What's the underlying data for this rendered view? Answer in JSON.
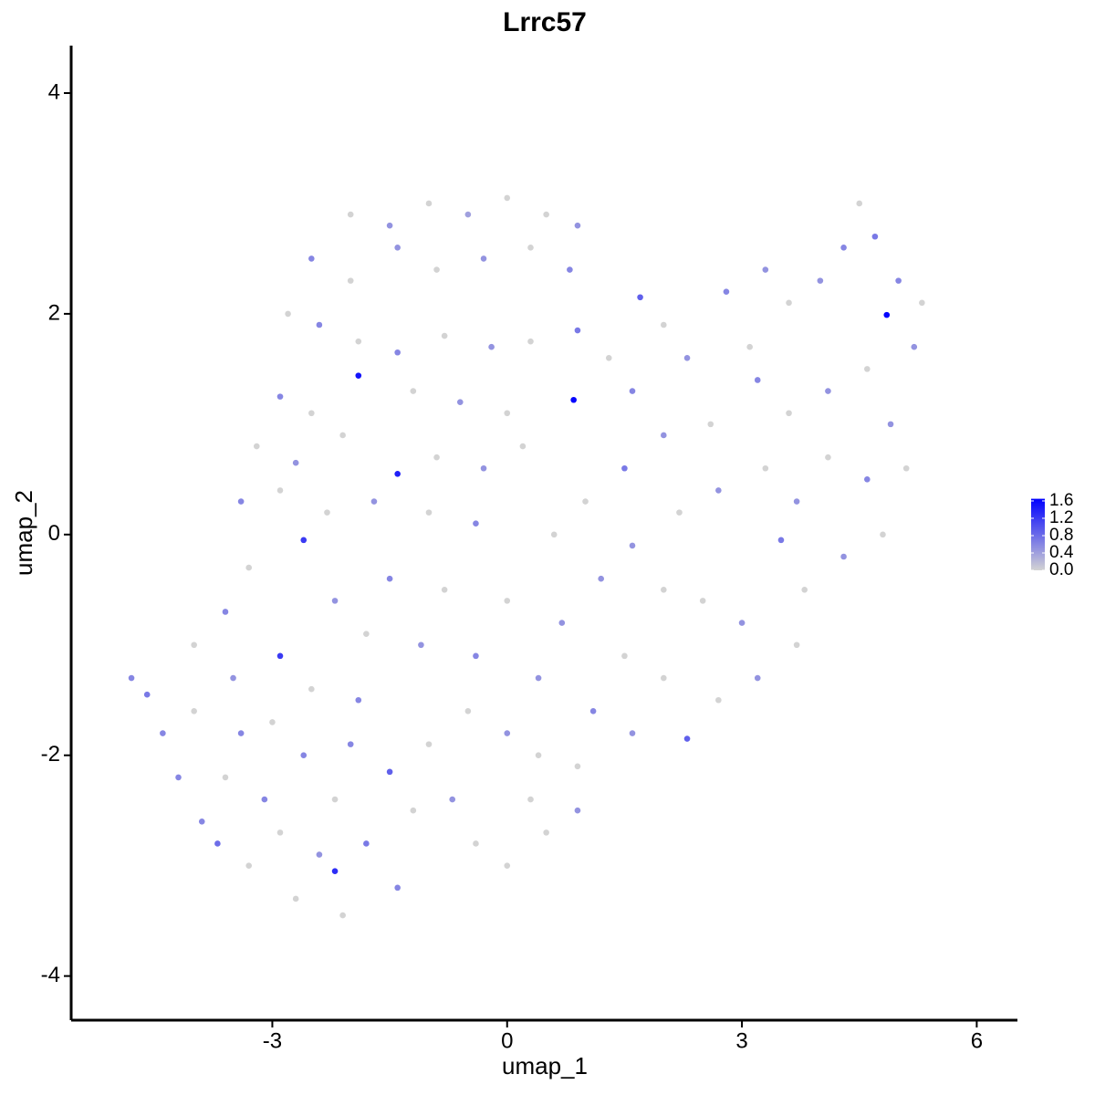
{
  "chart_data": {
    "type": "scatter",
    "title": "Lrrc57",
    "x_label": "umap_1",
    "y_label": "umap_2",
    "xlim": [
      -5.57,
      6.52
    ],
    "ylim": [
      -4.4,
      4.43
    ],
    "xticks": [
      -3,
      0,
      3,
      6
    ],
    "yticks": [
      -4,
      -2,
      0,
      2,
      4
    ],
    "low_color": "#d3d3d3",
    "high_color": "#0000ff",
    "colorlim": [
      0,
      1.65
    ],
    "colorticks": [
      {
        "value": 0,
        "label": "0.0"
      },
      0.4,
      0.8,
      1.2,
      1.6
    ],
    "x": [
      -2.0,
      -1.5,
      -1.0,
      -0.5,
      0,
      0.5,
      0.9,
      -2.5,
      -2.0,
      -1.4,
      -0.9,
      -0.3,
      0.3,
      0.8,
      -2.8,
      -2.4,
      -1.9,
      -1.4,
      -0.8,
      -0.2,
      0.3,
      -2.9,
      -2.5,
      -1.9,
      -1.2,
      -0.6,
      0,
      -3.2,
      -2.7,
      -2.1,
      -1.4,
      -0.9,
      -0.3,
      0.2,
      -3.4,
      -2.9,
      -2.3,
      -1.7,
      -1.0,
      -0.4,
      0.85,
      0.9,
      1.3,
      1.6,
      1.7,
      2.0,
      2.3,
      2.8,
      3.1,
      3.3,
      3.6,
      4.0,
      4.3,
      4.5,
      4.7,
      5.0,
      5.3,
      4.85,
      5.2,
      4.6,
      4.1,
      3.6,
      3.2,
      2.6,
      2.0,
      1.5,
      1.0,
      4.9,
      5.1,
      4.6,
      4.1,
      3.7,
      3.3,
      2.7,
      2.2,
      1.6,
      0.6,
      4.8,
      4.3,
      3.8,
      3.5,
      3.0,
      2.5,
      2.0,
      1.2,
      3.7,
      3.2,
      2.7,
      2.3,
      2.0,
      1.5,
      1.6,
      1.1,
      0.9,
      0.9,
      0.5,
      -4.8,
      -4.6,
      -4.4,
      -4.2,
      -4.0,
      -3.9,
      -3.7,
      -3.6,
      -3.4,
      -3.3,
      -3.1,
      -2.9,
      -2.9,
      -2.7,
      -2.6,
      -2.4,
      -2.2,
      -2.1,
      -2.2,
      -1.9,
      -1.8,
      -1.5,
      -1.4,
      -1.2,
      -1.0,
      -0.7,
      -0.4,
      0,
      0.3,
      -4.0,
      -3.6,
      -3.3,
      -2.6,
      -2.2,
      -1.8,
      -1.5,
      -1.1,
      -0.8,
      -0.4,
      0,
      0.4,
      -2.5,
      -2.0,
      -0.5,
      0,
      0.4,
      0.7,
      -3.0,
      -3.5
    ],
    "y": [
      2.9,
      2.8,
      3.0,
      2.9,
      3.05,
      2.9,
      2.8,
      2.5,
      2.3,
      2.6,
      2.4,
      2.5,
      2.6,
      2.4,
      2.0,
      1.9,
      1.75,
      1.65,
      1.8,
      1.7,
      1.75,
      1.25,
      1.1,
      1.44,
      1.3,
      1.2,
      1.1,
      0.8,
      0.65,
      0.9,
      0.55,
      0.7,
      0.6,
      0.8,
      0.3,
      0.4,
      0.2,
      0.3,
      0.2,
      0.1,
      1.22,
      1.85,
      1.6,
      1.3,
      2.15,
      1.9,
      1.6,
      2.2,
      1.7,
      2.4,
      2.1,
      2.3,
      2.6,
      3.0,
      2.7,
      2.3,
      2.1,
      1.99,
      1.7,
      1.5,
      1.3,
      1.1,
      1.4,
      1.0,
      0.9,
      0.6,
      0.3,
      1.0,
      0.6,
      0.5,
      0.7,
      0.3,
      0.6,
      0.4,
      0.2,
      -0.1,
      0.0,
      0.0,
      -0.2,
      -0.5,
      -0.05,
      -0.8,
      -0.6,
      -0.5,
      -0.4,
      -1.0,
      -1.3,
      -1.5,
      -1.85,
      -1.3,
      -1.1,
      -1.8,
      -1.6,
      -2.1,
      -2.5,
      -2.7,
      -1.3,
      -1.45,
      -1.8,
      -2.2,
      -1.6,
      -2.6,
      -2.8,
      -2.2,
      -1.8,
      -3.0,
      -2.4,
      -1.1,
      -2.7,
      -3.3,
      -2.0,
      -2.9,
      -3.05,
      -3.45,
      -2.4,
      -1.5,
      -2.8,
      -2.15,
      -3.2,
      -2.5,
      -1.9,
      -2.4,
      -2.8,
      -3.0,
      -2.4,
      -1.0,
      -0.7,
      -0.3,
      -0.05,
      -0.6,
      -0.9,
      -0.4,
      -1.0,
      -0.5,
      -1.1,
      -0.6,
      -1.3,
      -1.4,
      -1.9,
      -1.6,
      -1.8,
      -2.0,
      -0.8,
      -1.7,
      -1.3
    ],
    "values": [
      0,
      0.5,
      0,
      0.4,
      0,
      0,
      0.5,
      0.6,
      0,
      0.5,
      0,
      0.5,
      0,
      0.6,
      0,
      0.6,
      0,
      0.6,
      0,
      0.5,
      0,
      0.6,
      0,
      1.5,
      0,
      0.5,
      0,
      0,
      0.5,
      0,
      1.4,
      0,
      0.5,
      0,
      0.6,
      0,
      0,
      0.5,
      0,
      0.6,
      1.6,
      0.7,
      0,
      0.6,
      0.9,
      0,
      0.5,
      0.6,
      0,
      0.5,
      0,
      0.5,
      0.6,
      0,
      0.7,
      0.6,
      0,
      1.6,
      0.5,
      0,
      0.5,
      0,
      0.6,
      0,
      0.5,
      0.7,
      0,
      0.5,
      0,
      0.6,
      0,
      0.5,
      0,
      0.5,
      0,
      0.5,
      0,
      0,
      0.5,
      0,
      0.7,
      0.5,
      0,
      0,
      0.5,
      0,
      0.5,
      0,
      0.9,
      0,
      0,
      0.5,
      0.6,
      0,
      0.5,
      0,
      0.6,
      0.7,
      0.6,
      0.6,
      0,
      0.6,
      0.8,
      0,
      0.6,
      0,
      0.6,
      1.2,
      0,
      0,
      0.6,
      0.5,
      1.3,
      0,
      0,
      0.6,
      0.7,
      0.9,
      0.6,
      0,
      0,
      0.5,
      0,
      0,
      0,
      0,
      0.6,
      0,
      1.2,
      0.5,
      0,
      0.6,
      0.5,
      0,
      0.6,
      0,
      0.5,
      0,
      0.6,
      0,
      0.5,
      0,
      0.5,
      0,
      0.5
    ]
  }
}
